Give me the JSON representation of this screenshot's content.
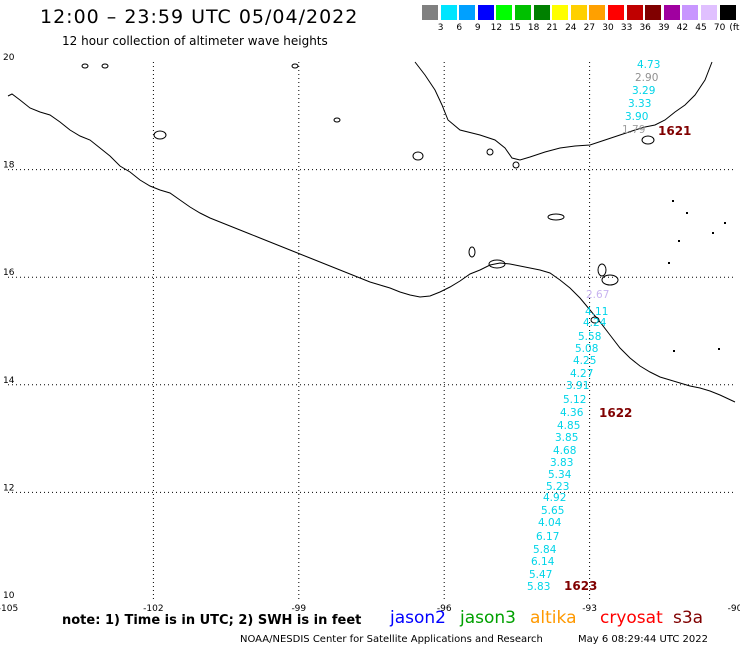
{
  "title": "12:00  –  23:59 UTC 05/04/2022",
  "subtitle": "12 hour collection of altimeter wave heights",
  "color_scale": {
    "unit": "(ft)",
    "colors": [
      "#808080",
      "#00e5ff",
      "#00a0ff",
      "#0000ff",
      "#00ff00",
      "#00c000",
      "#008000",
      "#ffff00",
      "#ffd000",
      "#ffa000",
      "#ff0000",
      "#c00000",
      "#800000",
      "#a000a0",
      "#c896ff",
      "#e0c0ff",
      "#000000"
    ],
    "labels": [
      "3",
      "6",
      "9",
      "12",
      "15",
      "18",
      "21",
      "24",
      "27",
      "30",
      "33",
      "36",
      "39",
      "42",
      "45",
      "70"
    ]
  },
  "map": {
    "lon_ticks": [
      "-105",
      "-102",
      "-99",
      "-96",
      "-93",
      "-90"
    ],
    "lat_ticks": [
      "20",
      "18",
      "16",
      "14",
      "12",
      "10"
    ],
    "extent": {
      "lon": [
        -105,
        -90
      ],
      "lat": [
        10,
        20
      ]
    }
  },
  "wave_heights": [
    {
      "value": "4.73",
      "color": "#00d4e8"
    },
    {
      "value": "2.90",
      "color": "#909090"
    },
    {
      "value": "3.29",
      "color": "#00d4e8"
    },
    {
      "value": "3.33",
      "color": "#00d4e8"
    },
    {
      "value": "3.90",
      "color": "#00d4e8"
    },
    {
      "value": "1.79",
      "color": "#a0a0a0"
    },
    {
      "value": "2.67",
      "color": "#c8b4f0"
    },
    {
      "value": "4.11",
      "color": "#00d4e8"
    },
    {
      "value": "4.24",
      "color": "#00d4e8"
    },
    {
      "value": "5.58",
      "color": "#00d4e8"
    },
    {
      "value": "5.08",
      "color": "#00d4e8"
    },
    {
      "value": "4.25",
      "color": "#00d4e8"
    },
    {
      "value": "4.27",
      "color": "#00d4e8"
    },
    {
      "value": "3.91",
      "color": "#00d4e8"
    },
    {
      "value": "5.12",
      "color": "#00d4e8"
    },
    {
      "value": "4.36",
      "color": "#00d4e8"
    },
    {
      "value": "4.85",
      "color": "#00d4e8"
    },
    {
      "value": "3.85",
      "color": "#00d4e8"
    },
    {
      "value": "4.68",
      "color": "#00d4e8"
    },
    {
      "value": "3.83",
      "color": "#00d4e8"
    },
    {
      "value": "5.34",
      "color": "#00d4e8"
    },
    {
      "value": "5.23",
      "color": "#00d4e8"
    },
    {
      "value": "4.92",
      "color": "#00d4e8"
    },
    {
      "value": "5.65",
      "color": "#00d4e8"
    },
    {
      "value": "4.04",
      "color": "#00d4e8"
    },
    {
      "value": "6.17",
      "color": "#00d4e8"
    },
    {
      "value": "5.84",
      "color": "#00d4e8"
    },
    {
      "value": "6.14",
      "color": "#00d4e8"
    },
    {
      "value": "5.47",
      "color": "#00d4e8"
    },
    {
      "value": "5.83",
      "color": "#00d4e8"
    }
  ],
  "time_labels": [
    "1621",
    "1622",
    "1623"
  ],
  "time_label_color": "#800000",
  "note": "note: 1) Time is in UTC; 2) SWH is in feet",
  "satellites": [
    {
      "name": "jason2",
      "color": "#0000ff"
    },
    {
      "name": "jason3",
      "color": "#00a000"
    },
    {
      "name": "altika",
      "color": "#ff9900"
    },
    {
      "name": "cryosat",
      "color": "#ff0000"
    },
    {
      "name": "s3a",
      "color": "#800000"
    }
  ],
  "credit": "NOAA/NESDIS Center for Satellite Applications and Research",
  "timestamp": "May  6 08:29:44 UTC 2022"
}
